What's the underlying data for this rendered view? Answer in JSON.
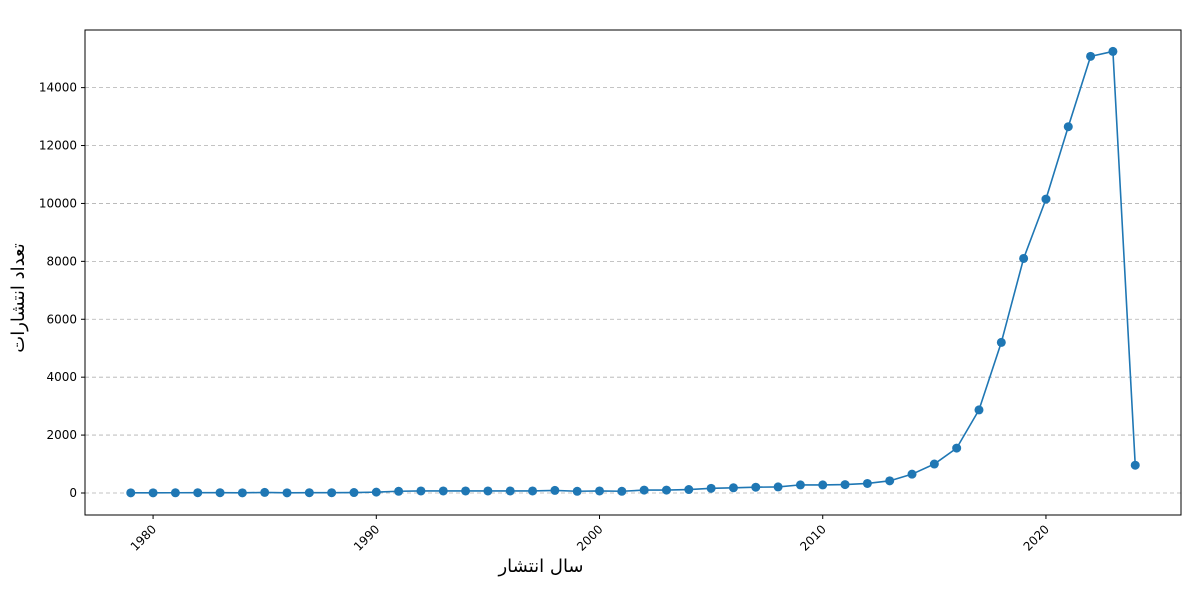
{
  "chart_data": {
    "type": "line",
    "title": "",
    "xlabel": "سال انتشار",
    "ylabel": "تعداد انتشارات",
    "xlim": [
      1976.95,
      2026.05
    ],
    "ylim": [
      -760,
      15990
    ],
    "x_ticks": [
      1980,
      1990,
      2000,
      2010,
      2020
    ],
    "y_ticks": [
      0,
      2000,
      4000,
      6000,
      8000,
      10000,
      12000,
      14000
    ],
    "grid": "y-dashed",
    "series": [
      {
        "color": "#1f77b4",
        "marker": "circle",
        "x": [
          1979,
          1980,
          1981,
          1982,
          1983,
          1984,
          1985,
          1986,
          1987,
          1988,
          1989,
          1990,
          1991,
          1992,
          1993,
          1994,
          1995,
          1996,
          1997,
          1998,
          1999,
          2000,
          2001,
          2002,
          2003,
          2004,
          2005,
          2006,
          2007,
          2008,
          2009,
          2010,
          2011,
          2012,
          2013,
          2014,
          2015,
          2016,
          2017,
          2018,
          2019,
          2020,
          2021,
          2022,
          2023,
          2024
        ],
        "y": [
          5,
          5,
          8,
          10,
          10,
          5,
          20,
          5,
          10,
          10,
          15,
          30,
          60,
          70,
          70,
          70,
          70,
          70,
          70,
          90,
          60,
          70,
          60,
          100,
          100,
          120,
          160,
          180,
          200,
          210,
          280,
          280,
          290,
          330,
          420,
          650,
          1000,
          1550,
          2870,
          5200,
          8100,
          10150,
          12650,
          15080,
          15250,
          960
        ]
      }
    ]
  }
}
